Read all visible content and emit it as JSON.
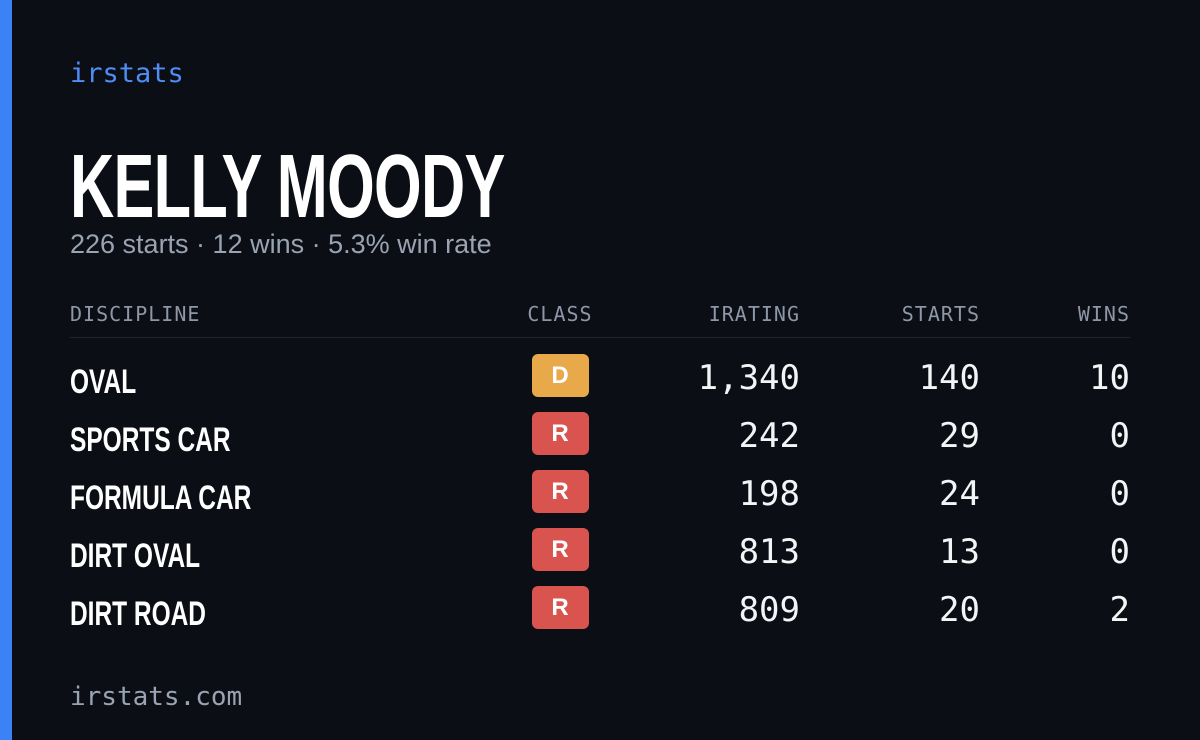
{
  "brand": "irstats",
  "header": {
    "name": "KELLY MOODY",
    "summary": "226 starts · 12 wins · 5.3% win rate"
  },
  "table": {
    "columns": [
      "DISCIPLINE",
      "CLASS",
      "IRATING",
      "STARTS",
      "WINS"
    ],
    "rows": [
      [
        "OVAL",
        "D",
        "1,340",
        "140",
        "10"
      ],
      [
        "SPORTS CAR",
        "R",
        "242",
        "29",
        "0"
      ],
      [
        "FORMULA CAR",
        "R",
        "198",
        "24",
        "0"
      ],
      [
        "DIRT OVAL",
        "R",
        "813",
        "13",
        "0"
      ],
      [
        "DIRT ROAD",
        "R",
        "809",
        "20",
        "2"
      ]
    ],
    "class_colors": [
      "#e8a94a",
      "#d9534f",
      "#d9534f",
      "#d9534f",
      "#d9534f"
    ]
  },
  "footer": "irstats.com"
}
